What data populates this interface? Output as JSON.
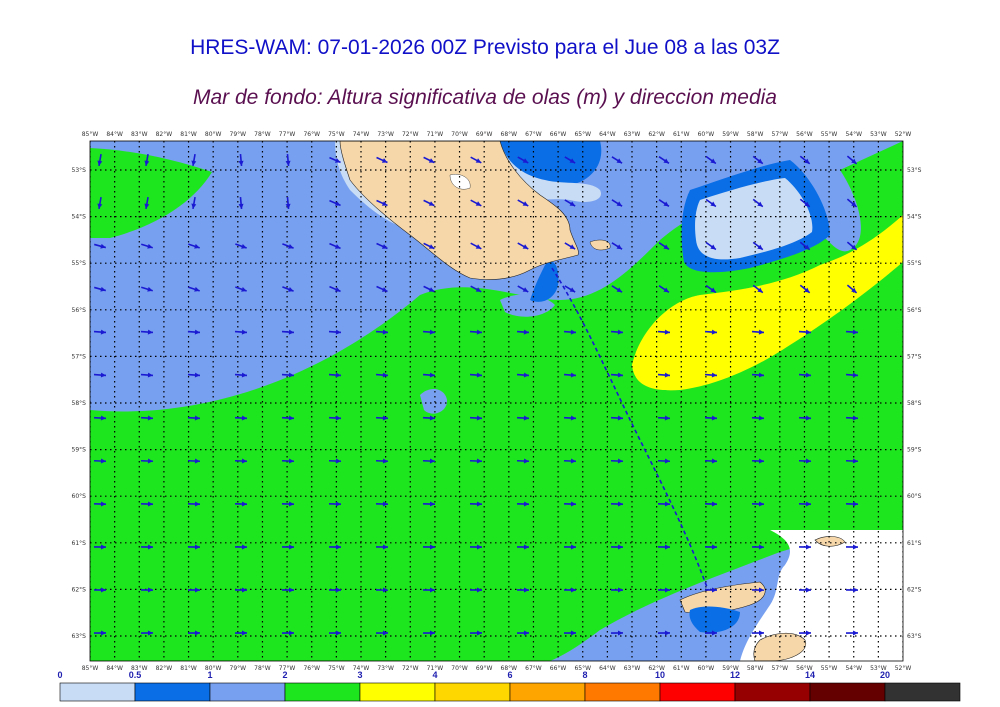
{
  "title": "HRES-WAM: 07-01-2026 00Z Previsto para el Jue 08 a las 03Z",
  "subtitle": "Mar de fondo: Altura significativa de olas (m) y direccion media",
  "lon_labels": [
    "85°W",
    "84°W",
    "83°W",
    "82°W",
    "81°W",
    "80°W",
    "79°W",
    "78°W",
    "77°W",
    "76°W",
    "75°W",
    "74°W",
    "73°W",
    "72°W",
    "71°W",
    "70°W",
    "69°W",
    "68°W",
    "67°W",
    "66°W",
    "65°W",
    "64°W",
    "63°W",
    "62°W",
    "61°W",
    "60°W",
    "59°W",
    "58°W",
    "57°W",
    "56°W",
    "55°W",
    "54°W",
    "53°W",
    "52°W"
  ],
  "lat_labels": [
    "53°S",
    "54°S",
    "55°S",
    "56°S",
    "57°S",
    "58°S",
    "59°S",
    "60°S",
    "61°S",
    "62°S",
    "63°S"
  ],
  "colorbar": {
    "labels": [
      "0",
      "0.5",
      "1",
      "2",
      "3",
      "4",
      "6",
      "8",
      "10",
      "12",
      "14",
      "20"
    ],
    "colors": [
      "#c8dcf5",
      "#0a6ee6",
      "#78a0f0",
      "#1ee61e",
      "#ffff00",
      "#ffd700",
      "#ffa500",
      "#ff7800",
      "#ff0000",
      "#960000",
      "#640000",
      "#323232"
    ]
  },
  "colors": {
    "land": "#f5d7aa",
    "arrow": "#1a1ad2",
    "track": "#1a1ad2"
  }
}
